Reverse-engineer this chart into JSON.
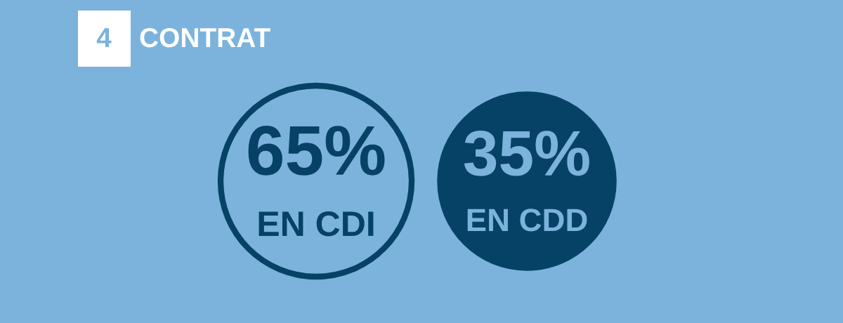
{
  "chart_data": {
    "type": "other",
    "title": "CONTRAT",
    "annotations": [
      "4"
    ],
    "categories": [
      "EN CDI",
      "EN CDD"
    ],
    "values": [
      65,
      35
    ],
    "value_labels": [
      "65%",
      "35%"
    ],
    "colors": [
      "#7bb3dc",
      "#064266"
    ]
  }
}
